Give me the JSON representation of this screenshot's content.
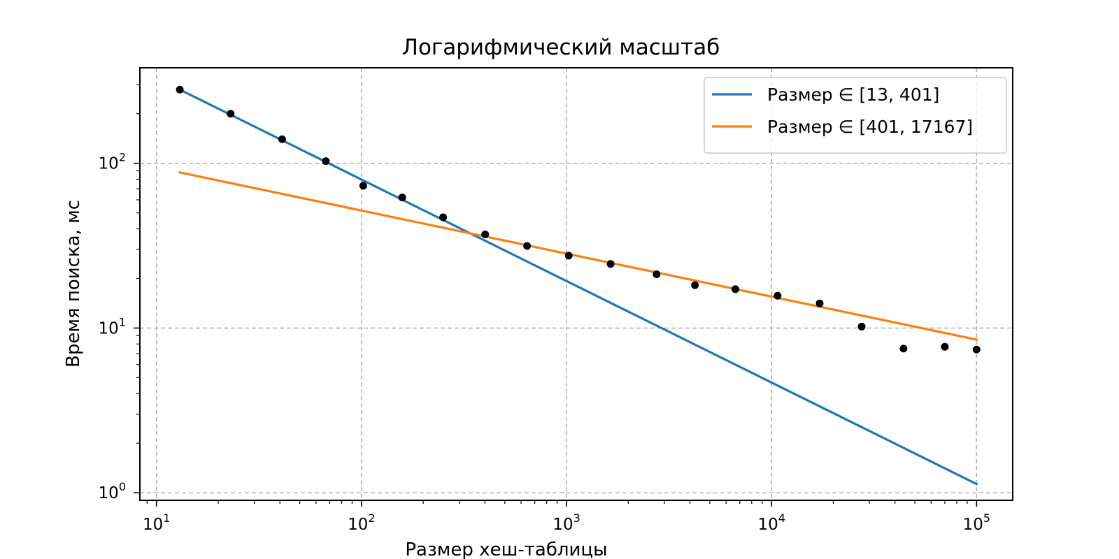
{
  "chart_data": {
    "type": "line",
    "title": "Логарифмический масштаб",
    "xlabel": "Размер хеш-таблицы",
    "ylabel": "Время поиска, мс",
    "xscale": "log",
    "yscale": "log",
    "xlim": [
      8.3,
      150000
    ],
    "ylim": [
      0.9,
      380
    ],
    "grid": true,
    "legend_position": "top-right",
    "x_ticks": [
      {
        "value": 10,
        "base": "10",
        "exp": "1"
      },
      {
        "value": 100,
        "base": "10",
        "exp": "2"
      },
      {
        "value": 1000,
        "base": "10",
        "exp": "3"
      },
      {
        "value": 10000,
        "base": "10",
        "exp": "4"
      },
      {
        "value": 100000,
        "base": "10",
        "exp": "5"
      }
    ],
    "y_ticks": [
      {
        "value": 1,
        "base": "10",
        "exp": "0"
      },
      {
        "value": 10,
        "base": "10",
        "exp": "1"
      },
      {
        "value": 100,
        "base": "10",
        "exp": "2"
      }
    ],
    "series": [
      {
        "name": "Размер  ∈ [13, 401]",
        "kind": "line",
        "color": "#1f77b4",
        "x": [
          13,
          100000
        ],
        "y": [
          280,
          1.13
        ]
      },
      {
        "name": "Размер  ∈ [401, 17167]",
        "kind": "line",
        "color": "#ff7f0e",
        "x": [
          13,
          100000
        ],
        "y": [
          88,
          8.5
        ]
      },
      {
        "kind": "scatter",
        "color": "#000000",
        "x": [
          13,
          23,
          41,
          67,
          102,
          158,
          250,
          401,
          642,
          1025,
          1640,
          2750,
          4230,
          6660,
          10700,
          17167,
          27500,
          44000,
          70000,
          100000
        ],
        "y": [
          280,
          200,
          140,
          103,
          73,
          62,
          47,
          37,
          31.5,
          27.5,
          24.5,
          21.2,
          18.2,
          17.2,
          15.7,
          14.1,
          10.2,
          7.5,
          7.7,
          7.4
        ]
      }
    ]
  }
}
